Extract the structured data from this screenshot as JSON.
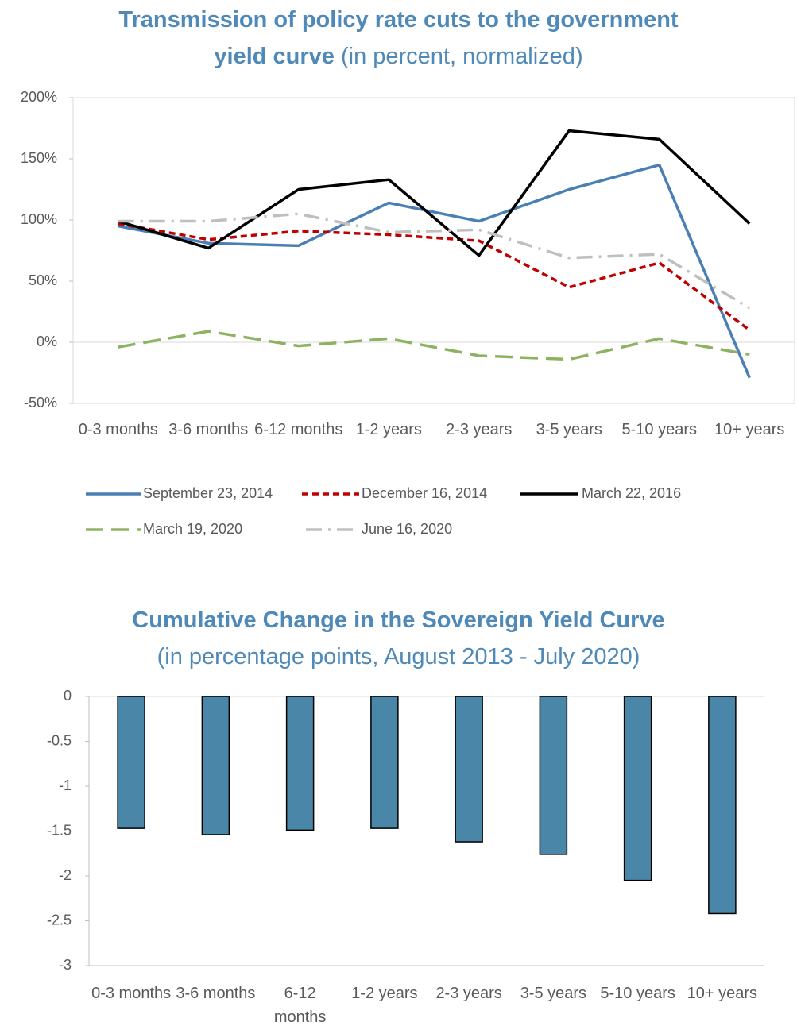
{
  "chart_data": [
    {
      "type": "line",
      "title": "Transmission of policy rate cuts to the government yield curve",
      "subtitle": "(in percent, normalized)",
      "categories": [
        "0-3 months",
        "3-6 months",
        "6-12 months",
        "1-2 years",
        "2-3 years",
        "3-5 years",
        "5-10 years",
        "10+ years"
      ],
      "series": [
        {
          "name": "September 23, 2014",
          "color": "#4a7fb5",
          "dash": "solid",
          "values": [
            95,
            81,
            79,
            114,
            99,
            125,
            145,
            -29
          ]
        },
        {
          "name": "December 16, 2014",
          "color": "#c00000",
          "dash": "short",
          "values": [
            97,
            84,
            91,
            88,
            83,
            45,
            65,
            10
          ]
        },
        {
          "name": "March 22, 2016",
          "color": "#000000",
          "dash": "solid",
          "values": [
            99,
            77,
            125,
            133,
            71,
            173,
            166,
            97
          ]
        },
        {
          "name": "March 19, 2020",
          "color": "#8db360",
          "dash": "long",
          "values": [
            -4,
            9,
            -3,
            3,
            -11,
            -14,
            3,
            -10
          ]
        },
        {
          "name": "June 16, 2020",
          "color": "#bfbfbf",
          "dash": "dashdot",
          "values": [
            99,
            99,
            105,
            90,
            92,
            69,
            72,
            28
          ]
        }
      ],
      "ylim": [
        -50,
        200
      ],
      "yticks": [
        {
          "value": -50,
          "label": "-50%"
        },
        {
          "value": 0,
          "label": "0%"
        },
        {
          "value": 50,
          "label": "50%"
        },
        {
          "value": 100,
          "label": "100%"
        },
        {
          "value": 150,
          "label": "150%"
        },
        {
          "value": 200,
          "label": "200%"
        }
      ],
      "legend": "bottom"
    },
    {
      "type": "bar",
      "title": "Cumulative Change in the Sovereign Yield Curve",
      "subtitle": "(in percentage points, August 2013  - July 2020)",
      "categories": [
        "0-3 months",
        "3-6 months",
        "6-12 months",
        "1-2 years",
        "2-3 years",
        "3-5 years",
        "5-10 years",
        "10+ years"
      ],
      "values": [
        -1.47,
        -1.54,
        -1.49,
        -1.47,
        -1.62,
        -1.76,
        -2.05,
        -2.42
      ],
      "color": "#4a86a8",
      "ylim": [
        -3,
        0
      ],
      "yticks": [
        -3,
        -2.5,
        -2,
        -1.5,
        -1,
        -0.5,
        0
      ]
    }
  ]
}
